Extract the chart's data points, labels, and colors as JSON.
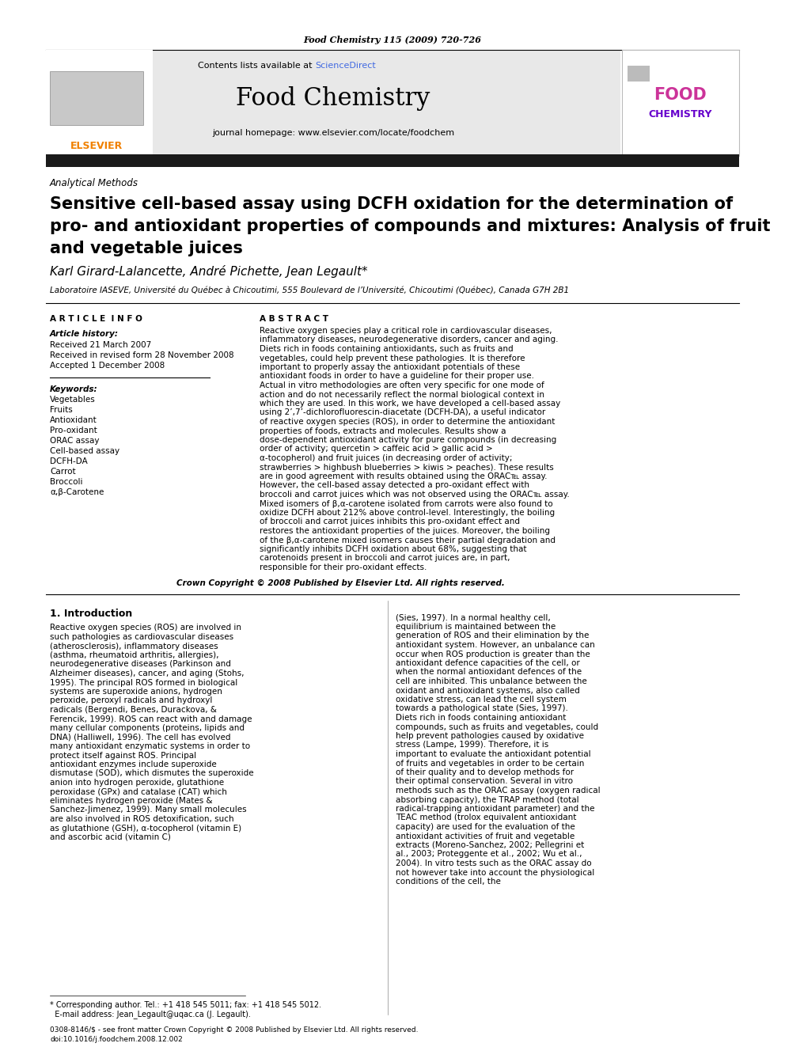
{
  "journal_ref": "Food Chemistry 115 (2009) 720-726",
  "contents_text": "Contents lists available at ",
  "science_direct": "ScienceDirect",
  "journal_name": "Food Chemistry",
  "journal_homepage": "journal homepage: www.elsevier.com/locate/foodchem",
  "section_label": "Analytical Methods",
  "paper_title_line1": "Sensitive cell-based assay using DCFH oxidation for the determination of",
  "paper_title_line2": "pro- and antioxidant properties of compounds and mixtures: Analysis of fruit",
  "paper_title_line3": "and vegetable juices",
  "authors": "Karl Girard-Lalancette, André Pichette, Jean Legault*",
  "affiliation": "Laboratoire IASEVE, Université du Québec à Chicoutimi, 555 Boulevard de l’Université, Chicoutimi (Québec), Canada G7H 2B1",
  "article_info_header": "A R T I C L E  I N F O",
  "abstract_header": "A B S T R A C T",
  "article_history_label": "Article history:",
  "received1": "Received 21 March 2007",
  "received2": "Received in revised form 28 November 2008",
  "accepted": "Accepted 1 December 2008",
  "keywords_label": "Keywords:",
  "keywords": [
    "Vegetables",
    "Fruits",
    "Antioxidant",
    "Pro-oxidant",
    "ORAC assay",
    "Cell-based assay",
    "DCFH-DA",
    "Carrot",
    "Broccoli",
    "α,β-Carotene"
  ],
  "abstract_text": "Reactive oxygen species play a critical role in cardiovascular diseases, inflammatory diseases, neurodegenerative disorders, cancer and aging. Diets rich in foods containing antioxidants, such as fruits and vegetables, could help prevent these pathologies. It is therefore important to properly assay the antioxidant potentials of these antioxidant foods in order to have a guideline for their proper use. Actual in vitro methodologies are often very specific for one mode of action and do not necessarily reflect the normal biological context in which they are used. In this work, we have developed a cell-based assay using 2’,7’-dichlorofluorescin-diacetate (DCFH-DA), a useful indicator of reactive oxygen species (ROS), in order to determine the antioxidant properties of foods, extracts and molecules. Results show a dose-dependent antioxidant activity for pure compounds (in decreasing order of activity; quercetin > caffeic acid > gallic acid > α-tocopherol) and fruit juices (in decreasing order of activity; strawberries > highbush blueberries > kiwis > peaches). These results are in good agreement with results obtained using the ORAC℡ assay. However, the cell-based assay detected a pro-oxidant effect with broccoli and carrot juices which was not observed using the ORAC℡ assay. Mixed isomers of β,α-carotene isolated from carrots were also found to oxidize DCFH about 212% above control-level. Interestingly, the boiling of broccoli and carrot juices inhibits this pro-oxidant effect and restores the antioxidant properties of the juices. Moreover, the boiling of the β,α-carotene mixed isomers causes their partial degradation and significantly inhibits DCFH oxidation about 68%, suggesting that carotenoids present in broccoli and carrot juices are, in part, responsible for their pro-oxidant effects.",
  "copyright_text": "Crown Copyright © 2008 Published by Elsevier Ltd. All rights reserved.",
  "intro_header": "1. Introduction",
  "intro_text_left": "Reactive oxygen species (ROS) are involved in such pathologies as cardiovascular diseases (atherosclerosis), inflammatory diseases (asthma, rheumatoid arthritis, allergies), neurodegenerative diseases (Parkinson and Alzheimer diseases), cancer, and aging (Stohs, 1995). The principal ROS formed in biological systems are superoxide anions, hydrogen peroxide, peroxyl radicals and hydroxyl radicals (Bergendi, Benes, Durackova, & Ferencik, 1999). ROS can react with and damage many cellular components (proteins, lipids and DNA) (Halliwell, 1996). The cell has evolved many antioxidant enzymatic systems in order to protect itself against ROS. Principal antioxidant enzymes include superoxide dismutase (SOD), which dismutes the superoxide anion into hydrogen peroxide, glutathione peroxidase (GPx) and catalase (CAT) which eliminates hydrogen peroxide (Mates & Sanchez-Jimenez, 1999). Many small molecules are also involved in ROS detoxification, such as glutathione (GSH), α-tocopherol (vitamin E) and ascorbic acid (vitamin C)",
  "intro_text_right": "(Sies, 1997). In a normal healthy cell, equilibrium is maintained between the generation of ROS and their elimination by the antioxidant system. However, an unbalance can occur when ROS production is greater than the antioxidant defence capacities of the cell, or when the normal antioxidant defences of the cell are inhibited. This unbalance between the oxidant and antioxidant systems, also called oxidative stress, can lead the cell system towards a pathological state (Sies, 1997). Diets rich in foods containing antioxidant compounds, such as fruits and vegetables, could help prevent pathologies caused by oxidative stress (Lampe, 1999). Therefore, it is important to evaluate the antioxidant potential of fruits and vegetables in order to be certain of their quality and to develop methods for their optimal conservation. Several in vitro methods such as the ORAC assay (oxygen radical absorbing capacity), the TRAP method (total radical-trapping antioxidant parameter) and the TEAC method (trolox equivalent antioxidant capacity) are used for the evaluation of the antioxidant activities of fruit and vegetable extracts (Moreno-Sanchez, 2002; Pellegrini et al., 2003; Proteggente et al., 2002; Wu et al., 2004). In vitro tests such as the ORAC assay do not however take into account the physiological conditions of the cell, the",
  "footnote_text_1": "* Corresponding author. Tel.: +1 418 545 5011; fax: +1 418 545 5012.",
  "footnote_text_2": "  E-mail address: Jean_Legault@uqac.ca (J. Legault).",
  "issn_text_1": "0308-8146/$ - see front matter Crown Copyright © 2008 Published by Elsevier Ltd. All rights reserved.",
  "issn_text_2": "doi:10.1016/j.foodchem.2008.12.002",
  "bg_color": "#ffffff",
  "black_bar_color": "#1a1a1a",
  "elsevier_orange": "#f08000",
  "sciencedirect_blue": "#4169e1",
  "food_chem_pink": "#cc3399",
  "food_chem_purple": "#6600cc",
  "gray_header_bg": "#e8e8e8"
}
